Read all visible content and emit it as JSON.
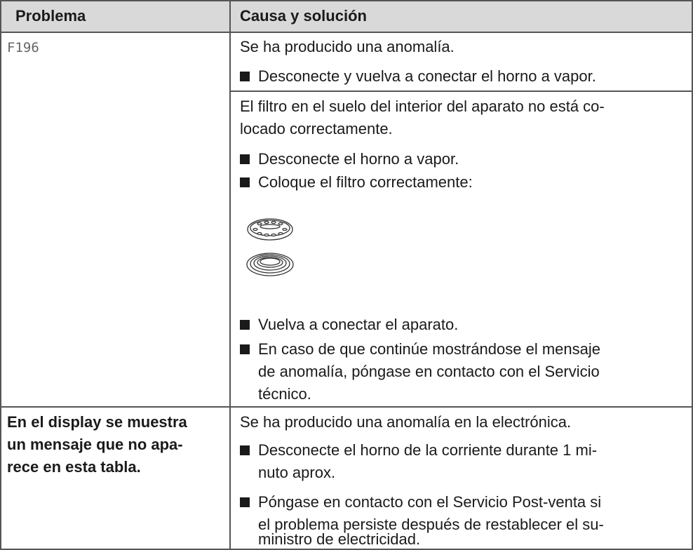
{
  "header": [
    "Problema",
    "Causa y solución"
  ],
  "rows": [
    {
      "problem": [
        "F196"
      ],
      "causes": [
        {
          "text": [
            "Se ha producido una anomalía."
          ],
          "bullets": [
            [
              "Desconecte y vuelva a conectar el horno a vapor."
            ]
          ]
        },
        {
          "text": [
            "El filtro en el suelo del interior del aparato no está co-",
            "locado correctamente."
          ],
          "bullets": [
            [
              "Desconecte el horno a vapor."
            ],
            [
              "Coloque el filtro correctamente:"
            ],
            [
              "Vuelva a conectar el aparato."
            ],
            [
              "En caso de que continúe mostrándose el mensaje",
              "de anomalía, póngase en contacto con el Servicio",
              "técnico."
            ]
          ]
        }
      ]
    },
    {
      "problem": [
        "En el display se muestra",
        "un mensaje que no apa-",
        "rece en esta tabla."
      ],
      "causes": [
        {
          "text": [
            "Se ha producido una anomalía en la electrónica."
          ],
          "bullets": [
            [
              "Desconecte el horno de la corriente durante 1 mi-",
              "nuto aprox."
            ],
            [
              "Póngase en contacto con el Servicio Post-venta si",
              "el problema persiste después de restablecer el su-",
              "ministro de electricidad."
            ]
          ]
        }
      ]
    }
  ]
}
